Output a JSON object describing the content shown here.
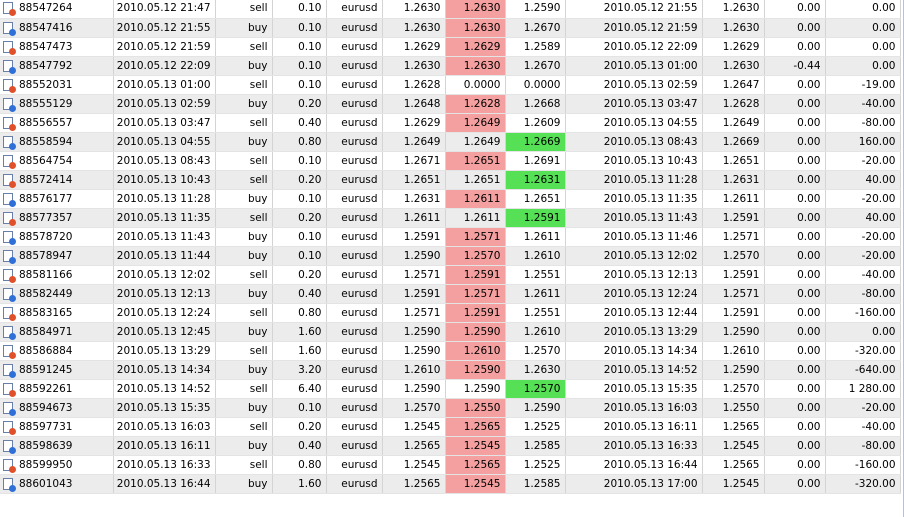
{
  "table": {
    "rows": [
      {
        "cells": [
          "88547264",
          "2010.05.12 21:47",
          "sell",
          "0.10",
          "eurusd",
          "1.2630",
          "1.2630",
          "1.2590",
          "2010.05.12 21:55",
          "1.2630",
          "0.00",
          "0.00"
        ],
        "highlight": "sl"
      },
      {
        "cells": [
          "88547416",
          "2010.05.12 21:55",
          "buy",
          "0.10",
          "eurusd",
          "1.2630",
          "1.2630",
          "1.2670",
          "2010.05.12 21:59",
          "1.2630",
          "0.00",
          "0.00"
        ],
        "highlight": "sl"
      },
      {
        "cells": [
          "88547473",
          "2010.05.12 21:59",
          "sell",
          "0.10",
          "eurusd",
          "1.2629",
          "1.2629",
          "1.2589",
          "2010.05.12 22:09",
          "1.2629",
          "0.00",
          "0.00"
        ],
        "highlight": "sl"
      },
      {
        "cells": [
          "88547792",
          "2010.05.12 22:09",
          "buy",
          "0.10",
          "eurusd",
          "1.2630",
          "1.2630",
          "1.2670",
          "2010.05.13 01:00",
          "1.2630",
          "-0.44",
          "0.00"
        ],
        "highlight": "sl"
      },
      {
        "cells": [
          "88552031",
          "2010.05.13 01:00",
          "sell",
          "0.10",
          "eurusd",
          "1.2628",
          "0.0000",
          "0.0000",
          "2010.05.13 02:59",
          "1.2647",
          "0.00",
          "-19.00"
        ]
      },
      {
        "cells": [
          "88555129",
          "2010.05.13 02:59",
          "buy",
          "0.20",
          "eurusd",
          "1.2648",
          "1.2628",
          "1.2668",
          "2010.05.13 03:47",
          "1.2628",
          "0.00",
          "-40.00"
        ],
        "highlight": "sl"
      },
      {
        "cells": [
          "88556557",
          "2010.05.13 03:47",
          "sell",
          "0.40",
          "eurusd",
          "1.2629",
          "1.2649",
          "1.2609",
          "2010.05.13 04:55",
          "1.2649",
          "0.00",
          "-80.00"
        ],
        "highlight": "sl"
      },
      {
        "cells": [
          "88558594",
          "2010.05.13 04:55",
          "buy",
          "0.80",
          "eurusd",
          "1.2649",
          "1.2649",
          "1.2669",
          "2010.05.13 08:43",
          "1.2669",
          "0.00",
          "160.00"
        ],
        "highlight": "tp"
      },
      {
        "cells": [
          "88564754",
          "2010.05.13 08:43",
          "sell",
          "0.10",
          "eurusd",
          "1.2671",
          "1.2651",
          "1.2691",
          "2010.05.13 10:43",
          "1.2651",
          "0.00",
          "-20.00"
        ],
        "highlight": "sl"
      },
      {
        "cells": [
          "88572414",
          "2010.05.13 10:43",
          "sell",
          "0.20",
          "eurusd",
          "1.2651",
          "1.2651",
          "1.2631",
          "2010.05.13 11:28",
          "1.2631",
          "0.00",
          "40.00"
        ],
        "highlight": "tp"
      },
      {
        "cells": [
          "88576177",
          "2010.05.13 11:28",
          "buy",
          "0.10",
          "eurusd",
          "1.2631",
          "1.2611",
          "1.2651",
          "2010.05.13 11:35",
          "1.2611",
          "0.00",
          "-20.00"
        ],
        "highlight": "sl"
      },
      {
        "cells": [
          "88577357",
          "2010.05.13 11:35",
          "sell",
          "0.20",
          "eurusd",
          "1.2611",
          "1.2611",
          "1.2591",
          "2010.05.13 11:43",
          "1.2591",
          "0.00",
          "40.00"
        ],
        "highlight": "tp"
      },
      {
        "cells": [
          "88578720",
          "2010.05.13 11:43",
          "buy",
          "0.10",
          "eurusd",
          "1.2591",
          "1.2571",
          "1.2611",
          "2010.05.13 11:46",
          "1.2571",
          "0.00",
          "-20.00"
        ],
        "highlight": "sl"
      },
      {
        "cells": [
          "88578947",
          "2010.05.13 11:44",
          "buy",
          "0.10",
          "eurusd",
          "1.2590",
          "1.2570",
          "1.2610",
          "2010.05.13 12:02",
          "1.2570",
          "0.00",
          "-20.00"
        ],
        "highlight": "sl"
      },
      {
        "cells": [
          "88581166",
          "2010.05.13 12:02",
          "sell",
          "0.20",
          "eurusd",
          "1.2571",
          "1.2591",
          "1.2551",
          "2010.05.13 12:13",
          "1.2591",
          "0.00",
          "-40.00"
        ],
        "highlight": "sl"
      },
      {
        "cells": [
          "88582449",
          "2010.05.13 12:13",
          "buy",
          "0.40",
          "eurusd",
          "1.2591",
          "1.2571",
          "1.2611",
          "2010.05.13 12:24",
          "1.2571",
          "0.00",
          "-80.00"
        ],
        "highlight": "sl"
      },
      {
        "cells": [
          "88583165",
          "2010.05.13 12:24",
          "sell",
          "0.80",
          "eurusd",
          "1.2571",
          "1.2591",
          "1.2551",
          "2010.05.13 12:44",
          "1.2591",
          "0.00",
          "-160.00"
        ],
        "highlight": "sl"
      },
      {
        "cells": [
          "88584971",
          "2010.05.13 12:45",
          "buy",
          "1.60",
          "eurusd",
          "1.2590",
          "1.2590",
          "1.2610",
          "2010.05.13 13:29",
          "1.2590",
          "0.00",
          "0.00"
        ],
        "highlight": "sl"
      },
      {
        "cells": [
          "88586884",
          "2010.05.13 13:29",
          "sell",
          "1.60",
          "eurusd",
          "1.2590",
          "1.2610",
          "1.2570",
          "2010.05.13 14:34",
          "1.2610",
          "0.00",
          "-320.00"
        ],
        "highlight": "sl"
      },
      {
        "cells": [
          "88591245",
          "2010.05.13 14:34",
          "buy",
          "3.20",
          "eurusd",
          "1.2610",
          "1.2590",
          "1.2630",
          "2010.05.13 14:52",
          "1.2590",
          "0.00",
          "-640.00"
        ],
        "highlight": "sl"
      },
      {
        "cells": [
          "88592261",
          "2010.05.13 14:52",
          "sell",
          "6.40",
          "eurusd",
          "1.2590",
          "1.2590",
          "1.2570",
          "2010.05.13 15:35",
          "1.2570",
          "0.00",
          "1 280.00"
        ],
        "highlight": "tp"
      },
      {
        "cells": [
          "88594673",
          "2010.05.13 15:35",
          "buy",
          "0.10",
          "eurusd",
          "1.2570",
          "1.2550",
          "1.2590",
          "2010.05.13 16:03",
          "1.2550",
          "0.00",
          "-20.00"
        ],
        "highlight": "sl"
      },
      {
        "cells": [
          "88597731",
          "2010.05.13 16:03",
          "sell",
          "0.20",
          "eurusd",
          "1.2545",
          "1.2565",
          "1.2525",
          "2010.05.13 16:11",
          "1.2565",
          "0.00",
          "-40.00"
        ],
        "highlight": "sl"
      },
      {
        "cells": [
          "88598639",
          "2010.05.13 16:11",
          "buy",
          "0.40",
          "eurusd",
          "1.2565",
          "1.2545",
          "1.2585",
          "2010.05.13 16:33",
          "1.2545",
          "0.00",
          "-80.00"
        ],
        "highlight": "sl"
      },
      {
        "cells": [
          "88599950",
          "2010.05.13 16:33",
          "sell",
          "0.80",
          "eurusd",
          "1.2545",
          "1.2565",
          "1.2525",
          "2010.05.13 16:44",
          "1.2565",
          "0.00",
          "-160.00"
        ],
        "highlight": "sl"
      },
      {
        "cells": [
          "88601043",
          "2010.05.13 16:44",
          "buy",
          "1.60",
          "eurusd",
          "1.2565",
          "1.2545",
          "1.2585",
          "2010.05.13 17:00",
          "1.2545",
          "0.00",
          "-320.00"
        ],
        "highlight": "sl"
      }
    ]
  }
}
